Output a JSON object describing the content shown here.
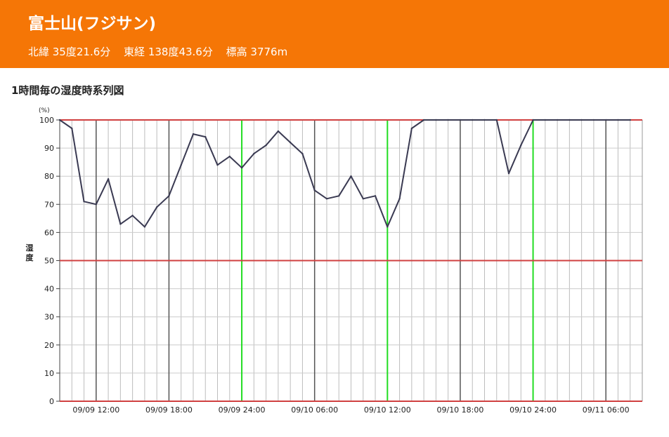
{
  "header": {
    "title": "富士山(フジサン)",
    "lat": "北緯 35度21.6分",
    "lon": "東経 138度43.6分",
    "elev": "標高 3776m"
  },
  "section": {
    "heading": "1時間毎の湿度時系列図"
  },
  "colors": {
    "header_bg": "#f57606",
    "line": "#3a3a52",
    "threshold": "#d04040",
    "noon_line": "#22dd22",
    "six_hour_line": "#555555",
    "hour_grid": "#bdbdbd",
    "h_grid": "#cccccc"
  },
  "chart_data": {
    "type": "line",
    "title": "",
    "ylabel": "湿度",
    "yunit": "(%)",
    "ylim": [
      0,
      100
    ],
    "yticks": [
      0,
      10,
      20,
      30,
      40,
      50,
      60,
      70,
      80,
      90,
      100
    ],
    "x_start": "09/09 09:00",
    "x_end": "09/11 08:00",
    "hours": 48,
    "xtick_labels": [
      "09/09 12:00",
      "09/09 18:00",
      "09/09 24:00",
      "09/10 06:00",
      "09/10 12:00",
      "09/10 18:00",
      "09/10 24:00",
      "09/11 06:00"
    ],
    "threshold_lines": [
      50,
      100
    ],
    "grid": true,
    "series": [
      {
        "values": [
          100,
          97,
          71,
          70,
          79,
          63,
          66,
          62,
          69,
          73,
          84,
          95,
          94,
          84,
          87,
          83,
          88,
          91,
          96,
          92,
          88,
          75,
          72,
          73,
          80,
          72,
          73,
          62,
          72,
          97,
          100,
          100,
          100,
          100,
          100,
          100,
          100,
          81,
          91,
          100,
          100,
          100,
          100,
          100,
          100,
          100,
          100,
          100
        ]
      }
    ]
  }
}
